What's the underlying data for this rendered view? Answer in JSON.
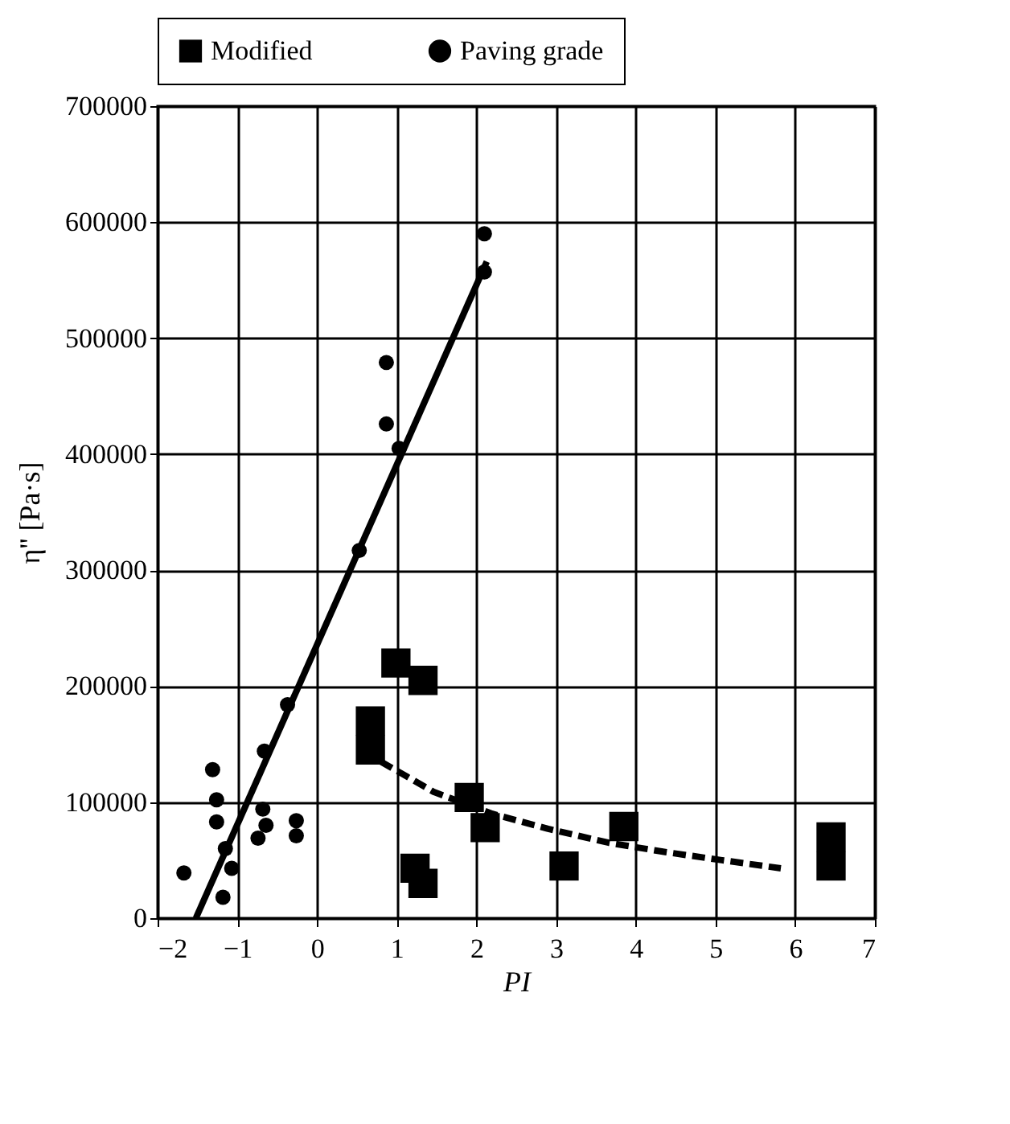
{
  "chart_data": {
    "type": "scatter",
    "xlabel": "PI",
    "ylabel": "η'' [Pa·s]",
    "xlim": [
      -2,
      7
    ],
    "xticks": [
      -2,
      -1,
      0,
      1,
      2,
      3,
      4,
      5,
      6,
      7
    ],
    "ylim": [
      0,
      700000
    ],
    "yticks": [
      0,
      100000,
      200000,
      300000,
      400000,
      500000,
      600000,
      700000
    ],
    "grid": true,
    "legend": "top",
    "series": [
      {
        "name": "Modified",
        "marker": "square",
        "color": "#000000",
        "x": [
          0.99,
          1.33,
          0.67,
          0.67,
          1.91,
          2.11,
          1.23,
          1.33,
          3.1,
          3.85,
          6.45,
          6.45
        ],
        "values": [
          220000,
          205000,
          170000,
          145000,
          104000,
          78000,
          43000,
          30000,
          45000,
          79000,
          70000,
          45000
        ]
      },
      {
        "name": "Paving grade",
        "marker": "circle",
        "color": "#000000",
        "x": [
          2.1,
          2.1,
          0.87,
          0.87,
          1.03,
          0.53,
          -0.37,
          -0.66,
          -1.31,
          -1.26,
          -1.26,
          -0.68,
          -0.64,
          -0.74,
          -0.26,
          -0.26,
          -1.15,
          -1.07,
          -1.18,
          -1.67
        ],
        "values": [
          590000,
          557000,
          479000,
          426000,
          405000,
          317000,
          184000,
          144000,
          128000,
          102000,
          83000,
          94000,
          80000,
          69000,
          84000,
          71000,
          60000,
          43000,
          18000,
          39000
        ]
      },
      {
        "type": "line",
        "line_style": "solid",
        "color": "#000000",
        "x": [
          -1.52,
          2.13
        ],
        "values": [
          0,
          566000
        ]
      },
      {
        "type": "line",
        "line_style": "dashed",
        "color": "#000000",
        "x": [
          0.8,
          1.46,
          2.2,
          2.9,
          3.66,
          4.37,
          5.08,
          5.82
        ],
        "values": [
          135000,
          109000,
          90000,
          77000,
          65000,
          57000,
          50000,
          43000
        ]
      }
    ]
  }
}
